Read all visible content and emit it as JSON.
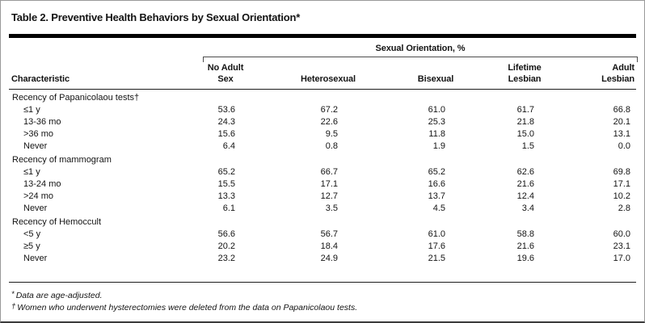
{
  "title": "Table 2. Preventive Health Behaviors by Sexual Orientation*",
  "table": {
    "group_header": "Sexual Orientation, %",
    "col_characteristic": "Characteristic",
    "columns": [
      {
        "lines": [
          "No Adult",
          "Sex"
        ]
      },
      {
        "lines": [
          "Heterosexual"
        ]
      },
      {
        "lines": [
          "Bisexual"
        ]
      },
      {
        "lines": [
          "Lifetime",
          "Lesbian"
        ]
      },
      {
        "lines": [
          "Adult",
          "Lesbian"
        ]
      }
    ],
    "rows": [
      {
        "type": "group",
        "label": "Recency of Papanicolaou tests†",
        "values": []
      },
      {
        "type": "item",
        "label": "≤1 y",
        "values": [
          "53.6",
          "67.2",
          "61.0",
          "61.7",
          "66.8"
        ]
      },
      {
        "type": "item",
        "label": "13-36 mo",
        "values": [
          "24.3",
          "22.6",
          "25.3",
          "21.8",
          "20.1"
        ]
      },
      {
        "type": "item",
        "label": ">36 mo",
        "values": [
          "15.6",
          "9.5",
          "11.8",
          "15.0",
          "13.1"
        ]
      },
      {
        "type": "item",
        "label": "Never",
        "values": [
          "6.4",
          "0.8",
          "1.9",
          "1.5",
          "0.0"
        ]
      },
      {
        "type": "group",
        "label": "Recency of mammogram",
        "values": []
      },
      {
        "type": "item",
        "label": "≤1 y",
        "values": [
          "65.2",
          "66.7",
          "65.2",
          "62.6",
          "69.8"
        ]
      },
      {
        "type": "item",
        "label": "13-24 mo",
        "values": [
          "15.5",
          "17.1",
          "16.6",
          "21.6",
          "17.1"
        ]
      },
      {
        "type": "item",
        "label": ">24 mo",
        "values": [
          "13.3",
          "12.7",
          "13.7",
          "12.4",
          "10.2"
        ]
      },
      {
        "type": "item",
        "label": "Never",
        "values": [
          "6.1",
          "3.5",
          "4.5",
          "3.4",
          "2.8"
        ]
      },
      {
        "type": "group",
        "label": "Recency of Hemoccult",
        "values": []
      },
      {
        "type": "item",
        "label": "<5 y",
        "values": [
          "56.6",
          "56.7",
          "61.0",
          "58.8",
          "60.0"
        ]
      },
      {
        "type": "item",
        "label": "≥5 y",
        "values": [
          "20.2",
          "18.4",
          "17.6",
          "21.6",
          "23.1"
        ]
      },
      {
        "type": "item",
        "label": "Never",
        "values": [
          "23.2",
          "24.9",
          "21.5",
          "19.6",
          "17.0"
        ]
      }
    ]
  },
  "footnotes": [
    {
      "marker": "*",
      "text": "Data are age-adjusted."
    },
    {
      "marker": "†",
      "text": "Women who underwent hysterectomies were deleted from the data on Papanicolaou tests."
    }
  ],
  "colors": {
    "rule": "#000000",
    "border": "#9a9a9a",
    "text": "#141414"
  }
}
